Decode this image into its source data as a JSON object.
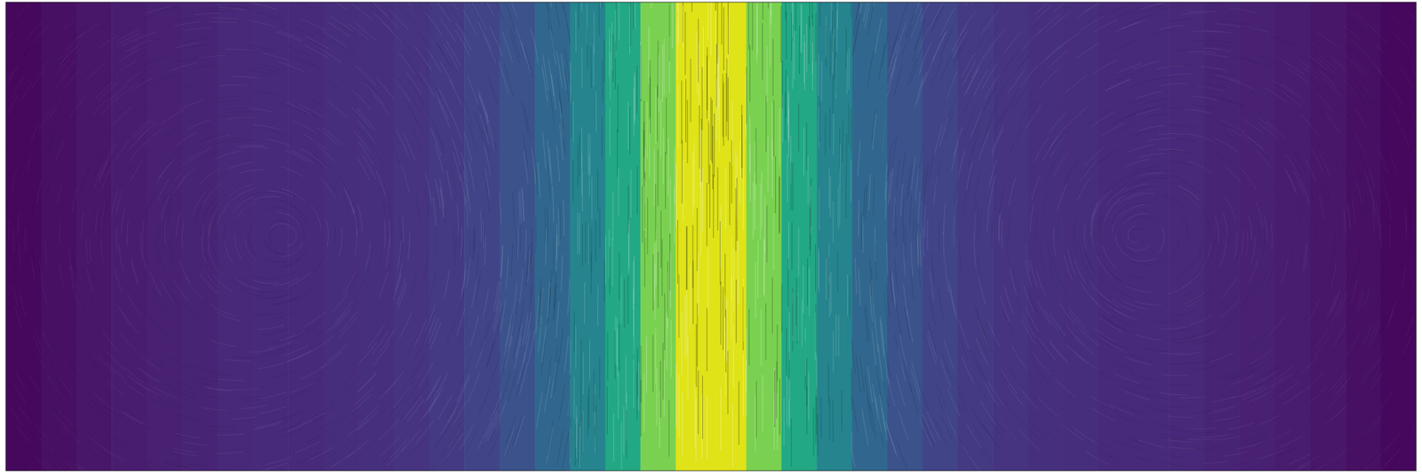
{
  "chart_data": {
    "type": "heatmap",
    "color": "viridis",
    "tick_labels": false,
    "xlim": [
      0,
      1
    ],
    "ylim": [
      0,
      1
    ],
    "bins": [
      0,
      0.025,
      0.05,
      0.075,
      0.1,
      0.125,
      0.15,
      0.175,
      0.2,
      0.225,
      0.25,
      0.275,
      0.3,
      0.325,
      0.35,
      0.375,
      0.4,
      0.425,
      0.45,
      0.475,
      0.5,
      0.525,
      0.55,
      0.575,
      0.6,
      0.625,
      0.65,
      0.675,
      0.7,
      0.725,
      0.75,
      0.775,
      0.8,
      0.825,
      0.85,
      0.875,
      0.9,
      0.925,
      0.95,
      0.975,
      1
    ],
    "values": [
      0.02,
      0.04,
      0.06,
      0.08,
      0.09,
      0.1,
      0.11,
      0.12,
      0.12,
      0.13,
      0.14,
      0.15,
      0.17,
      0.2,
      0.25,
      0.33,
      0.45,
      0.6,
      0.8,
      0.95,
      0.95,
      0.8,
      0.6,
      0.45,
      0.33,
      0.25,
      0.2,
      0.17,
      0.15,
      0.14,
      0.13,
      0.12,
      0.12,
      0.11,
      0.1,
      0.09,
      0.08,
      0.06,
      0.04,
      0.02
    ]
  }
}
